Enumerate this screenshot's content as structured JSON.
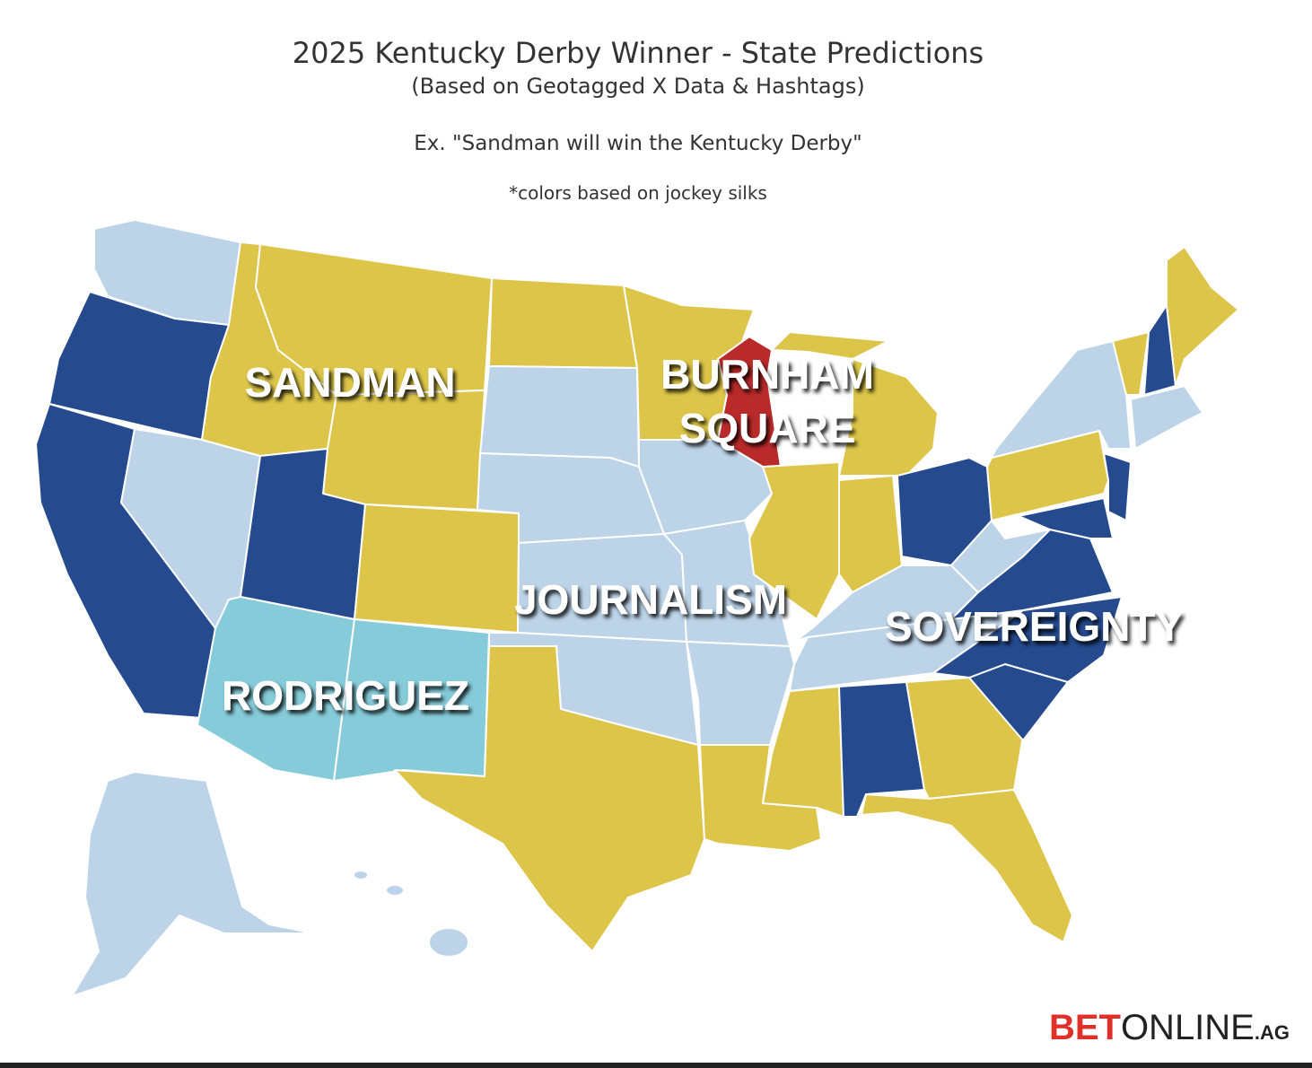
{
  "header": {
    "title": "2025 Kentucky Derby Winner - State Predictions",
    "subtitle": "(Based on Geotagged X Data & Hashtags)",
    "example": "Ex. \"Sandman will win the Kentucky Derby\"",
    "note": "*colors based on jockey silks"
  },
  "horses": [
    {
      "lines": [
        "SANDMAN"
      ],
      "color": "#dcc548"
    },
    {
      "lines": [
        "BURNHAM",
        "SQUARE"
      ],
      "color": "#b92a2a"
    },
    {
      "lines": [
        "JOURNALISM"
      ],
      "color": "#bcd3e8"
    },
    {
      "lines": [
        "SOVEREIGNTY"
      ],
      "color": "#254a8e"
    },
    {
      "lines": [
        "RODRIGUEZ"
      ],
      "color": "#86cbd9"
    }
  ],
  "logo": {
    "parts": [
      "BET",
      "ONLINE",
      ".AG"
    ]
  }
}
